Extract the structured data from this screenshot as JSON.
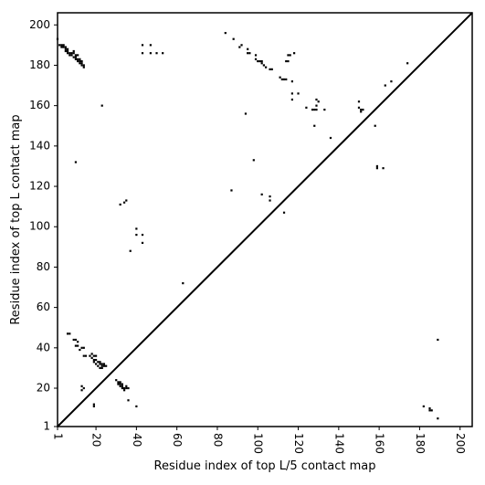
{
  "chart_data": {
    "type": "scatter",
    "title": "",
    "xlabel": "Residue index of top L/5 contact map",
    "ylabel": "Residue index of top L contact map",
    "xlim": [
      1,
      206
    ],
    "ylim": [
      1,
      206
    ],
    "x_ticks": [
      1,
      20,
      40,
      60,
      80,
      100,
      120,
      140,
      160,
      180,
      200
    ],
    "y_ticks": [
      1,
      20,
      40,
      60,
      80,
      100,
      120,
      140,
      160,
      180,
      200
    ],
    "x_tick_rotation": -90,
    "grid": false,
    "diagonal": {
      "from": [
        1,
        1
      ],
      "to": [
        206,
        206
      ]
    },
    "marker": "square",
    "color": "#000000",
    "points": [
      [
        1,
        193
      ],
      [
        2,
        190
      ],
      [
        3,
        190
      ],
      [
        4,
        190
      ],
      [
        3,
        189
      ],
      [
        4,
        189
      ],
      [
        5,
        189
      ],
      [
        5,
        188
      ],
      [
        6,
        188
      ],
      [
        5,
        187
      ],
      [
        6,
        187
      ],
      [
        6,
        186
      ],
      [
        7,
        186
      ],
      [
        8,
        186
      ],
      [
        9,
        186
      ],
      [
        7,
        185
      ],
      [
        8,
        185
      ],
      [
        10,
        185
      ],
      [
        9,
        184
      ],
      [
        10,
        184
      ],
      [
        10,
        183
      ],
      [
        11,
        183
      ],
      [
        12,
        183
      ],
      [
        11,
        182
      ],
      [
        12,
        182
      ],
      [
        13,
        182
      ],
      [
        12,
        181
      ],
      [
        13,
        181
      ],
      [
        13,
        180
      ],
      [
        14,
        180
      ],
      [
        14,
        179
      ],
      [
        11,
        185
      ],
      [
        9,
        187
      ],
      [
        43,
        190
      ],
      [
        47,
        190
      ],
      [
        43,
        186
      ],
      [
        47,
        186
      ],
      [
        50,
        186
      ],
      [
        53,
        186
      ],
      [
        84,
        196
      ],
      [
        88,
        193
      ],
      [
        91,
        189
      ],
      [
        92,
        190
      ],
      [
        95,
        188
      ],
      [
        95,
        186
      ],
      [
        96,
        186
      ],
      [
        99,
        185
      ],
      [
        99,
        183
      ],
      [
        100,
        182
      ],
      [
        101,
        182
      ],
      [
        102,
        182
      ],
      [
        102,
        181
      ],
      [
        103,
        180
      ],
      [
        104,
        179
      ],
      [
        106,
        178
      ],
      [
        107,
        178
      ],
      [
        111,
        174
      ],
      [
        112,
        173
      ],
      [
        113,
        173
      ],
      [
        114,
        173
      ],
      [
        114,
        182
      ],
      [
        115,
        182
      ],
      [
        115,
        185
      ],
      [
        116,
        185
      ],
      [
        118,
        186
      ],
      [
        117,
        172
      ],
      [
        117,
        166
      ],
      [
        117,
        163
      ],
      [
        120,
        166
      ],
      [
        124,
        159
      ],
      [
        127,
        158
      ],
      [
        128,
        158
      ],
      [
        129,
        158
      ],
      [
        129,
        163
      ],
      [
        130,
        162
      ],
      [
        129,
        160
      ],
      [
        133,
        158
      ],
      [
        128,
        150
      ],
      [
        136,
        144
      ],
      [
        150,
        162
      ],
      [
        150,
        159
      ],
      [
        151,
        158
      ],
      [
        151,
        157
      ],
      [
        152,
        158
      ],
      [
        158,
        150
      ],
      [
        159,
        130
      ],
      [
        159,
        129
      ],
      [
        162,
        129
      ],
      [
        163,
        170
      ],
      [
        166,
        172
      ],
      [
        174,
        181
      ],
      [
        94,
        156
      ],
      [
        98,
        133
      ],
      [
        87,
        118
      ],
      [
        102,
        116
      ],
      [
        106,
        115
      ],
      [
        106,
        113
      ],
      [
        113,
        107
      ],
      [
        63,
        72
      ],
      [
        37,
        88
      ],
      [
        40,
        99
      ],
      [
        40,
        96
      ],
      [
        43,
        96
      ],
      [
        43,
        92
      ],
      [
        34,
        112
      ],
      [
        35,
        113
      ],
      [
        32,
        111
      ],
      [
        23,
        160
      ],
      [
        10,
        132
      ],
      [
        6,
        47
      ],
      [
        7,
        47
      ],
      [
        9,
        44
      ],
      [
        10,
        44
      ],
      [
        11,
        43
      ],
      [
        10,
        41
      ],
      [
        11,
        41
      ],
      [
        12,
        39
      ],
      [
        13,
        40
      ],
      [
        14,
        40
      ],
      [
        14,
        36
      ],
      [
        15,
        36
      ],
      [
        17,
        36
      ],
      [
        18,
        35
      ],
      [
        19,
        34
      ],
      [
        20,
        36
      ],
      [
        18,
        37
      ],
      [
        19,
        36
      ],
      [
        20,
        34
      ],
      [
        19,
        33
      ],
      [
        21,
        33
      ],
      [
        20,
        32
      ],
      [
        21,
        31
      ],
      [
        22,
        32
      ],
      [
        22,
        30
      ],
      [
        23,
        31
      ],
      [
        24,
        31
      ],
      [
        23,
        30
      ],
      [
        22,
        33
      ],
      [
        23,
        32
      ],
      [
        24,
        32
      ],
      [
        25,
        31
      ],
      [
        13,
        21
      ],
      [
        14,
        20
      ],
      [
        13,
        19
      ],
      [
        30,
        24
      ],
      [
        31,
        23
      ],
      [
        31,
        22
      ],
      [
        32,
        22
      ],
      [
        32,
        21
      ],
      [
        33,
        22
      ],
      [
        33,
        20
      ],
      [
        34,
        20
      ],
      [
        35,
        20
      ],
      [
        34,
        19
      ],
      [
        35,
        21
      ],
      [
        36,
        20
      ],
      [
        32,
        23
      ],
      [
        33,
        21
      ],
      [
        36,
        14
      ],
      [
        40,
        11
      ],
      [
        19,
        12
      ],
      [
        19,
        11
      ],
      [
        182,
        11
      ],
      [
        185,
        10
      ],
      [
        186,
        9
      ],
      [
        185,
        9
      ],
      [
        189,
        5
      ],
      [
        189,
        44
      ]
    ]
  }
}
